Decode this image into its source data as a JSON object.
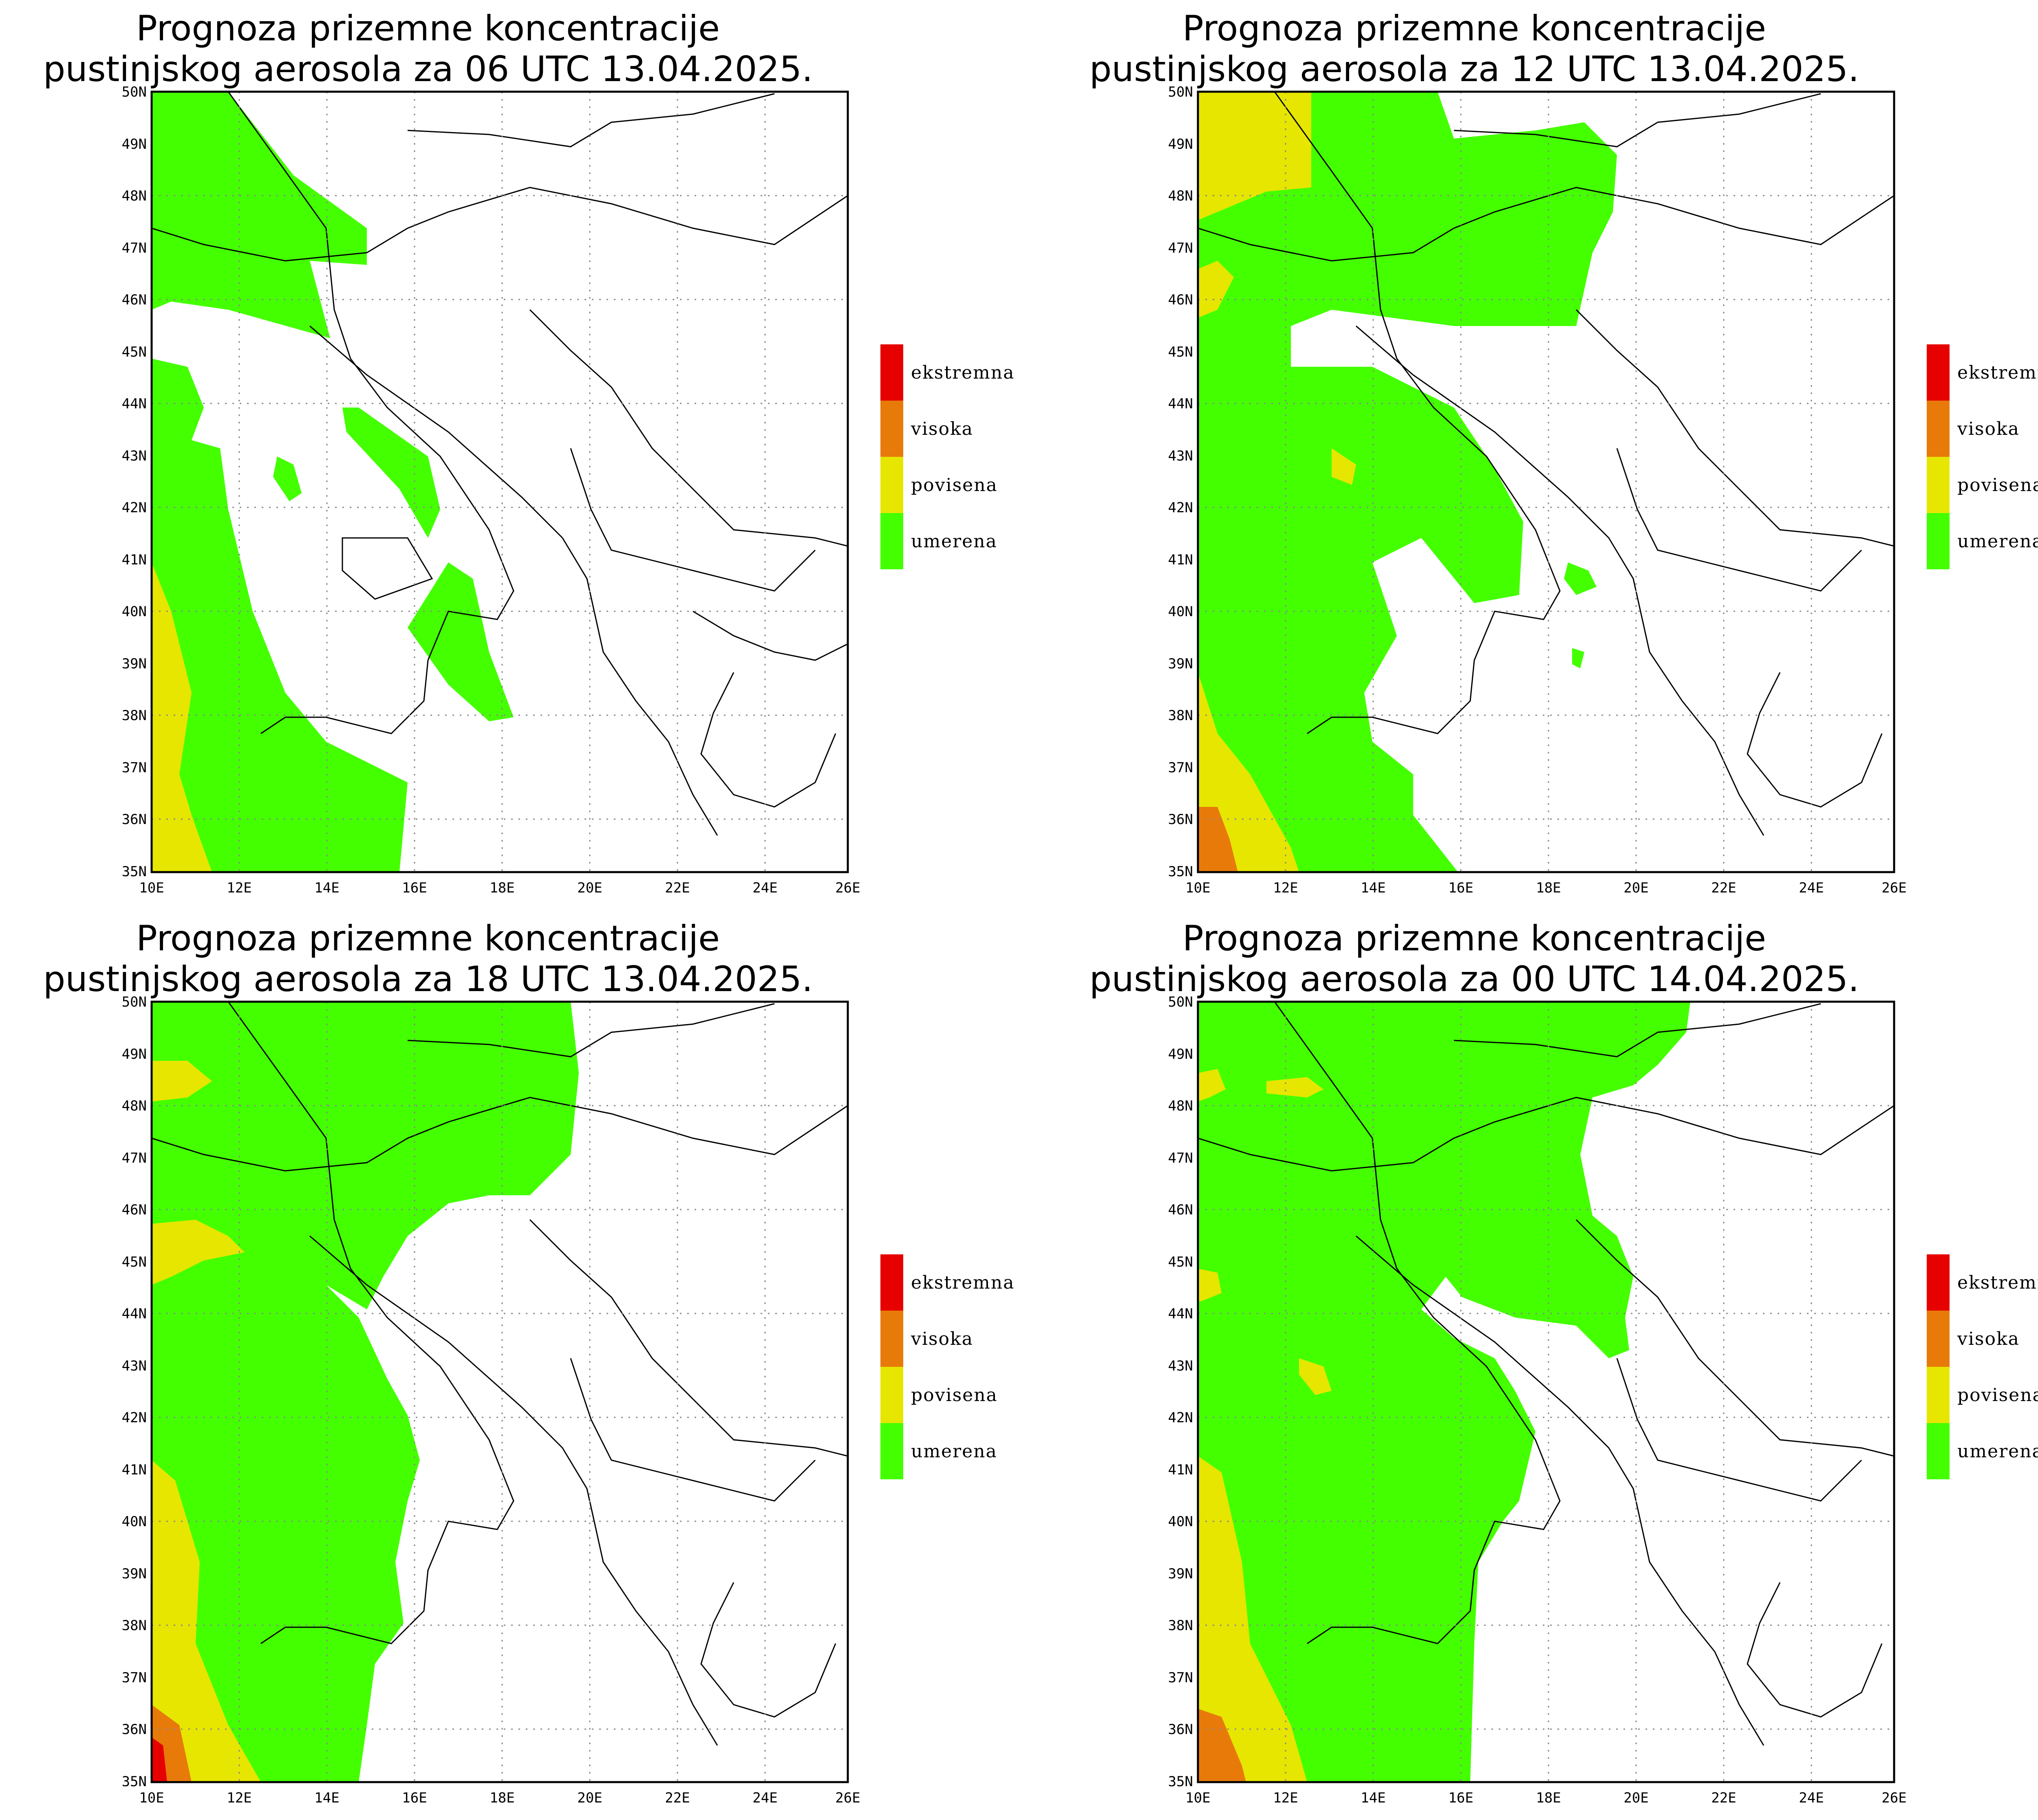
{
  "legend": {
    "items": [
      {
        "label": "ekstremna",
        "color": "#e60000"
      },
      {
        "label": "visoka",
        "color": "#e87a0a"
      },
      {
        "label": "povisena",
        "color": "#e6e600"
      },
      {
        "label": "umerena",
        "color": "#44ff00"
      }
    ]
  },
  "axes": {
    "lat_labels": [
      "50N",
      "49N",
      "48N",
      "47N",
      "46N",
      "45N",
      "44N",
      "43N",
      "42N",
      "41N",
      "40N",
      "39N",
      "38N",
      "37N",
      "36N",
      "35N"
    ],
    "lon_labels": [
      "10E",
      "12E",
      "14E",
      "16E",
      "18E",
      "20E",
      "22E",
      "24E",
      "26E"
    ]
  },
  "panels": [
    {
      "title_line1": "Prognoza prizemne koncentracije",
      "title_line2": "pustinjskog aerosola za 06 UTC 13.04.2025."
    },
    {
      "title_line1": "Prognoza prizemne koncentracije",
      "title_line2": "pustinjskog aerosola za 12 UTC 13.04.2025."
    },
    {
      "title_line1": "Prognoza prizemne koncentracije",
      "title_line2": "pustinjskog aerosola za 18 UTC 13.04.2025."
    },
    {
      "title_line1": "Prognoza prizemne koncentracije",
      "title_line2": "pustinjskog aerosola za 00 UTC 14.04.2025."
    }
  ],
  "colors": {
    "frame": "#000000",
    "grid": "#888888",
    "land_outline": "#000000"
  }
}
